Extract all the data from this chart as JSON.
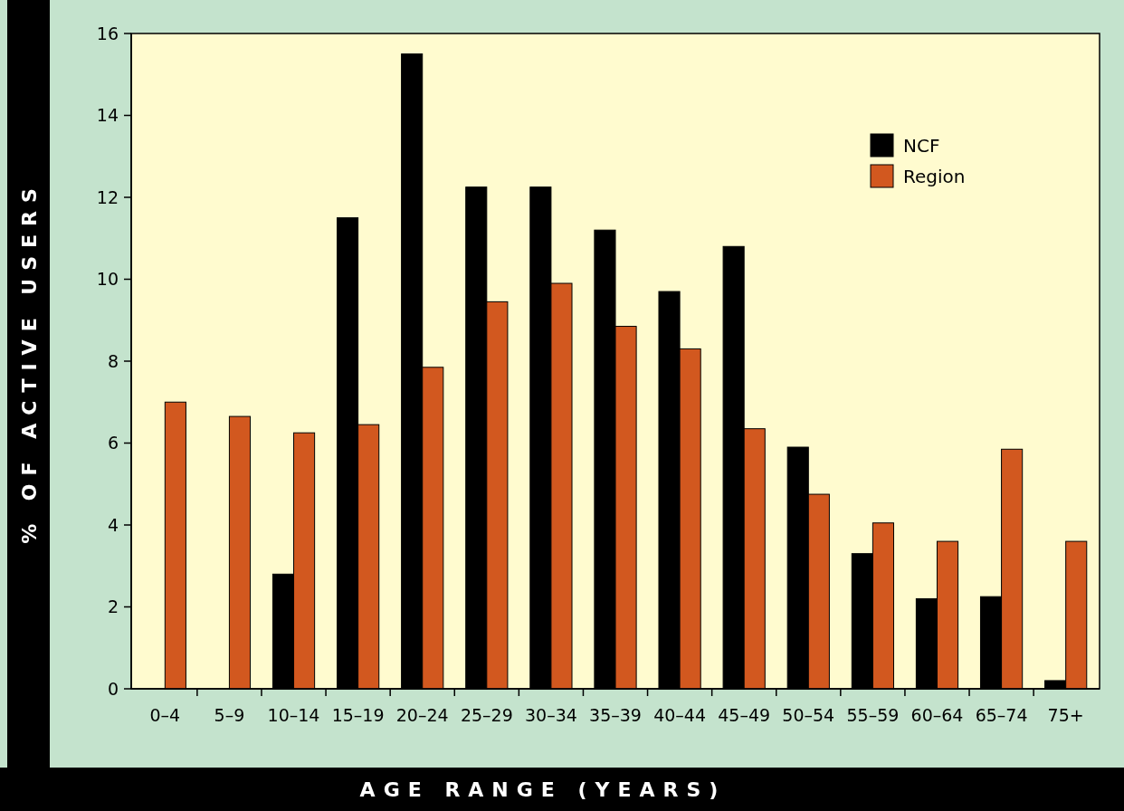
{
  "chart_data": {
    "type": "bar",
    "xlabel": "AGE RANGE (YEARS)",
    "ylabel": "% OF ACTIVE USERS",
    "categories": [
      "0–4",
      "5–9",
      "10–14",
      "15–19",
      "20–24",
      "25–29",
      "30–34",
      "35–39",
      "40–44",
      "45–49",
      "50–54",
      "55–59",
      "60–64",
      "65–74",
      "75+"
    ],
    "series": [
      {
        "name": "NCF",
        "color": "#000000",
        "values": [
          null,
          null,
          2.8,
          11.5,
          15.5,
          12.25,
          12.25,
          11.2,
          9.7,
          10.8,
          5.9,
          3.3,
          2.2,
          2.25,
          0.2
        ]
      },
      {
        "name": "Region",
        "color": "#d2581f",
        "values": [
          7.0,
          6.65,
          6.25,
          6.45,
          7.85,
          9.45,
          9.9,
          8.85,
          8.3,
          6.35,
          4.75,
          4.05,
          3.6,
          5.85,
          3.6
        ]
      }
    ],
    "ylim": [
      0,
      16
    ],
    "yticks": [
      0,
      2,
      4,
      6,
      8,
      10,
      12,
      14,
      16
    ],
    "grid": false,
    "legend": "top right"
  }
}
